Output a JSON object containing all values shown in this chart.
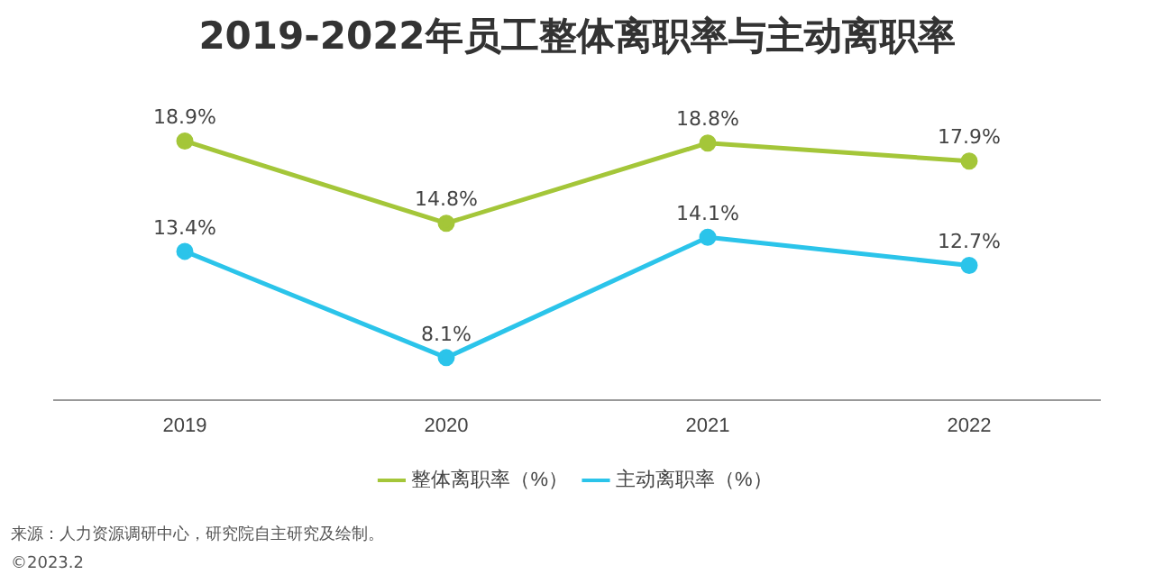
{
  "chart_data": {
    "type": "line",
    "title": "2019-2022年员工整体离职率与主动离职率",
    "categories": [
      "2019",
      "2020",
      "2021",
      "2022"
    ],
    "series": [
      {
        "name": "整体离职率（%）",
        "color": "#a4c639",
        "values": [
          18.9,
          14.8,
          18.8,
          17.9
        ],
        "value_labels": [
          "18.9%",
          "14.8%",
          "18.8%",
          "17.9%"
        ]
      },
      {
        "name": "主动离职率（%）",
        "color": "#2bc4ea",
        "values": [
          13.4,
          8.1,
          14.1,
          12.7
        ],
        "value_labels": [
          "13.4%",
          "8.1%",
          "14.1%",
          "12.7%"
        ]
      }
    ],
    "legend": "bottom",
    "marker": "circle",
    "grid": false,
    "annotations": [
      "来源：人力资源调研中心，研究院自主研究及绘制。",
      "©2023.2"
    ]
  }
}
